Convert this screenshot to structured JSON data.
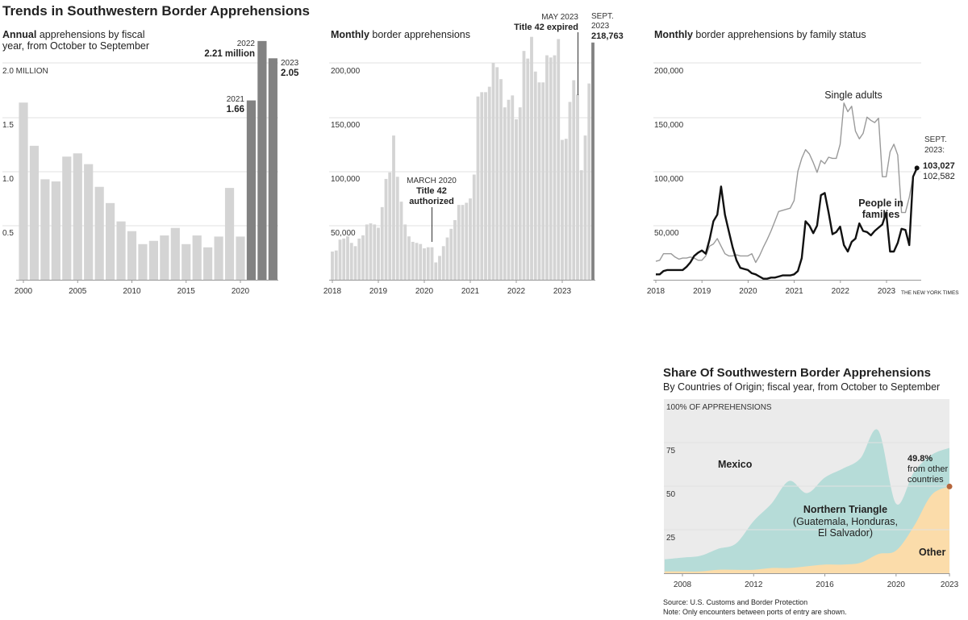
{
  "title": "Trends in Southwestern Border Apprehensions",
  "chart_data": [
    {
      "type": "bar",
      "subtitle_bold": "Annual",
      "subtitle_rest": " apprehensions by fiscal",
      "subtitle_line2": "year, from October to September",
      "y_unit_label": "2.0 MILLION",
      "yticks": [
        "0.5",
        "1.0",
        "1.5"
      ],
      "ylim": [
        0,
        2.25
      ],
      "grid": true,
      "xtick_labels": [
        "2000",
        "2005",
        "2010",
        "2015",
        "2020"
      ],
      "categories": [
        2000,
        2001,
        2002,
        2003,
        2004,
        2005,
        2006,
        2007,
        2008,
        2009,
        2010,
        2011,
        2012,
        2013,
        2014,
        2015,
        2016,
        2017,
        2018,
        2019,
        2020,
        2021,
        2022,
        2023
      ],
      "values": [
        1.64,
        1.24,
        0.93,
        0.91,
        1.14,
        1.17,
        1.07,
        0.86,
        0.71,
        0.54,
        0.45,
        0.33,
        0.36,
        0.41,
        0.48,
        0.33,
        0.41,
        0.3,
        0.4,
        0.85,
        0.4,
        1.66,
        2.21,
        2.05
      ],
      "highlight_from": 2021,
      "colors": {
        "normal": "#d4d4d4",
        "highlight": "#828282"
      },
      "annotations": {
        "y2021": "2021",
        "v2021": "1.66",
        "y2022": "2022",
        "v2022": "2.21 million",
        "y2023": "2023",
        "v2023": "2.05"
      }
    },
    {
      "type": "bar",
      "subtitle_bold": "Monthly",
      "subtitle_rest": " border apprehensions",
      "yticks": [
        "50,000",
        "100,000",
        "150,000",
        "200,000"
      ],
      "ylim": [
        0,
        225000
      ],
      "grid": true,
      "xtick_labels": [
        "2018",
        "2019",
        "2020",
        "2021",
        "2022",
        "2023"
      ],
      "x_start": "2018-01",
      "x_end": "2023-09",
      "values": [
        26000,
        27000,
        37000,
        38000,
        40000,
        34000,
        31000,
        38000,
        41000,
        51000,
        52000,
        51000,
        48000,
        67000,
        93000,
        99000,
        133000,
        95000,
        72000,
        51000,
        40000,
        35000,
        34000,
        33000,
        29000,
        30000,
        30000,
        16000,
        22000,
        31000,
        39000,
        47000,
        55000,
        69000,
        69000,
        71000,
        75000,
        97000,
        169000,
        173000,
        173000,
        178000,
        200000,
        196000,
        185000,
        159000,
        166000,
        170000,
        148000,
        159000,
        211000,
        204000,
        224000,
        192000,
        182000,
        182000,
        207000,
        205000,
        207000,
        222000,
        129000,
        130000,
        164000,
        184000,
        171000,
        101000,
        133000,
        181000,
        218763
      ],
      "colors": {
        "normal": "#d4d4d4",
        "highlight": "#828282"
      },
      "annotations": {
        "march_date": "MARCH 2020",
        "march_l1": "Title 42",
        "march_l2": "authorized",
        "may_date": "MAY 2023",
        "may_label": "Title 42 expired",
        "sept_l1": "SEPT.",
        "sept_l2": "2023",
        "sept_value": "218,763"
      }
    },
    {
      "type": "line",
      "subtitle_bold": "Monthly",
      "subtitle_rest": " border apprehensions by family status",
      "yticks": [
        "50,000",
        "100,000",
        "150,000",
        "200,000"
      ],
      "ylim": [
        0,
        225000
      ],
      "grid": true,
      "xtick_labels": [
        "2018",
        "2019",
        "2020",
        "2021",
        "2022",
        "2023"
      ],
      "x_start": "2018-01",
      "x_end": "2023-09",
      "series": [
        {
          "name": "Single adults",
          "color": "#9a9a9a",
          "values": [
            17000,
            18000,
            24000,
            24000,
            24000,
            21000,
            19000,
            20000,
            20000,
            21000,
            20000,
            18000,
            18000,
            22000,
            31000,
            33000,
            38000,
            31000,
            24000,
            22000,
            22000,
            23000,
            22000,
            22000,
            22000,
            24000,
            16000,
            22000,
            30000,
            37000,
            45000,
            54000,
            63000,
            64000,
            65000,
            66000,
            73000,
            100000,
            112000,
            120000,
            116000,
            108000,
            99000,
            110000,
            107000,
            113000,
            112000,
            112000,
            125000,
            163000,
            155000,
            160000,
            137000,
            130000,
            135000,
            150000,
            147000,
            145000,
            149000,
            95000,
            95000,
            118000,
            125000,
            115000,
            62000,
            62000,
            76000,
            95000,
            102582
          ]
        },
        {
          "name": "People in families",
          "color": "#111111",
          "values": [
            5000,
            5000,
            8000,
            9000,
            9000,
            9000,
            9000,
            9000,
            12000,
            16000,
            22000,
            25000,
            27000,
            24000,
            37000,
            54000,
            60000,
            86000,
            60000,
            45000,
            30000,
            18000,
            11000,
            10000,
            9000,
            6000,
            5000,
            3000,
            1000,
            1000,
            2000,
            2000,
            3000,
            4000,
            4000,
            4000,
            5000,
            8000,
            20000,
            54000,
            50000,
            43000,
            50000,
            78000,
            80000,
            62000,
            42000,
            44000,
            49000,
            32000,
            26000,
            35000,
            38000,
            52000,
            45000,
            44000,
            41000,
            45000,
            48000,
            51000,
            62000,
            26000,
            26000,
            34000,
            47000,
            46000,
            32000,
            95000,
            103027
          ]
        }
      ],
      "labels": {
        "single_adults": "Single adults",
        "families_l1": "People in",
        "families_l2": "families",
        "sept_l1": "SEPT.",
        "sept_l2": "2023:",
        "families_value": "103,027",
        "single_value": "102,582"
      },
      "credit": "THE NEW YORK TIMES"
    },
    {
      "type": "area",
      "title": "Share Of Southwestern Border Apprehensions",
      "subtitle": "By Countries of Origin; fiscal year, from October to September",
      "y_unit_label": "100% OF APPREHENSIONS",
      "yticks": [
        "25",
        "50",
        "75"
      ],
      "ylim": [
        0,
        100
      ],
      "grid": true,
      "xtick_labels": [
        "2008",
        "2012",
        "2016",
        "2020",
        "2023"
      ],
      "x": [
        2007,
        2008,
        2009,
        2010,
        2011,
        2012,
        2013,
        2014,
        2015,
        2016,
        2017,
        2018,
        2019,
        2020,
        2021,
        2022,
        2023
      ],
      "series": [
        {
          "name": "Other",
          "color": "#fbdcaa",
          "values": [
            1,
            1,
            1,
            2,
            2,
            2,
            3,
            3,
            4,
            5,
            5,
            6,
            11,
            13,
            27,
            45,
            49.8
          ]
        },
        {
          "name": "Northern Triangle",
          "color": "#b6dcd8",
          "values": [
            7,
            8,
            9,
            12,
            15,
            28,
            37,
            50,
            42,
            50,
            55,
            60,
            71,
            27,
            31,
            23,
            22.2
          ]
        },
        {
          "name": "Mexico",
          "color": "#ebebeb",
          "values": [
            92,
            91,
            90,
            86,
            83,
            70,
            60,
            47,
            54,
            45,
            40,
            34,
            18,
            60,
            42,
            32,
            28
          ]
        }
      ],
      "labels": {
        "mexico": "Mexico",
        "nt_l1": "Northern Triangle",
        "nt_l2": "(Guatemala, Honduras,",
        "nt_l3": "El Salvador)",
        "other": "Other",
        "callout_value": "49.8%",
        "callout_l1": "from other",
        "callout_l2": "countries"
      },
      "callout_color": "#b5653b",
      "source": "Source: U.S. Customs and Border Protection",
      "note": "Note: Only encounters between ports of entry are shown."
    }
  ]
}
